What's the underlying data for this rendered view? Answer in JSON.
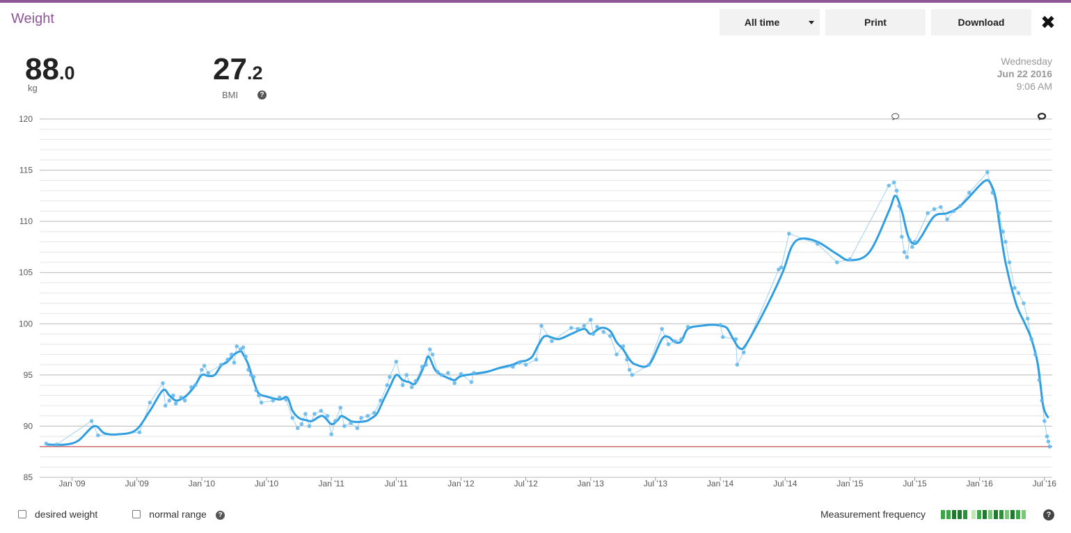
{
  "app": {
    "title": "Weight"
  },
  "toolbar": {
    "range_label": "All time",
    "print_label": "Print",
    "download_label": "Download",
    "close_icon": "close-icon"
  },
  "stats": {
    "weight": {
      "int": "88",
      "dec": ".0",
      "unit": "kg"
    },
    "bmi": {
      "int": "27",
      "dec": ".2",
      "label": "BMI"
    }
  },
  "datetime": {
    "day": "Wednesday",
    "date": "Jun 22 2016",
    "time": "9:06 AM"
  },
  "footer": {
    "desired_weight_label": "desired weight",
    "normal_range_label": "normal range",
    "frequency_label": "Measurement frequency",
    "frequency_colors": [
      "#3aa845",
      "#3aa845",
      "#1e7a2c",
      "#1e7a2c",
      "#2f8f3a",
      "#c3e6b8",
      "#3aa845",
      "#1e7a2c",
      "#7ac77a",
      "#1e7a2c",
      "#2f8f3a",
      "#7ac77a",
      "#1e7a2c",
      "#3aa845",
      "#7ac77a"
    ]
  },
  "colors": {
    "accent": "#8e5597",
    "line": "#2f9ee0",
    "points": "#5fb6ec",
    "reference": "#b22222"
  },
  "chart_data": {
    "type": "line",
    "xlabel": "",
    "ylabel": "",
    "ylim": [
      85,
      120
    ],
    "yticks": [
      85,
      90,
      95,
      100,
      105,
      110,
      115,
      120
    ],
    "xlim": [
      2008.75,
      2016.56
    ],
    "xticks": [
      {
        "v": 2009.0,
        "label": "Jan '09"
      },
      {
        "v": 2009.5,
        "label": "Jul '09"
      },
      {
        "v": 2010.0,
        "label": "Jan '10"
      },
      {
        "v": 2010.5,
        "label": "Jul '10"
      },
      {
        "v": 2011.0,
        "label": "Jan '11"
      },
      {
        "v": 2011.5,
        "label": "Jul '11"
      },
      {
        "v": 2012.0,
        "label": "Jan '12"
      },
      {
        "v": 2012.5,
        "label": "Jul '12"
      },
      {
        "v": 2013.0,
        "label": "Jan '13"
      },
      {
        "v": 2013.5,
        "label": "Jul '13"
      },
      {
        "v": 2014.0,
        "label": "Jan '14"
      },
      {
        "v": 2014.5,
        "label": "Jul '14"
      },
      {
        "v": 2015.0,
        "label": "Jan '15"
      },
      {
        "v": 2015.5,
        "label": "Jul '15"
      },
      {
        "v": 2016.0,
        "label": "Jan '16"
      },
      {
        "v": 2016.5,
        "label": "Jul '16"
      }
    ],
    "grid": true,
    "reference_line": {
      "y": 88.0
    },
    "trend": [
      [
        2008.8,
        88.2
      ],
      [
        2008.95,
        88.2
      ],
      [
        2009.05,
        88.6
      ],
      [
        2009.17,
        90.0
      ],
      [
        2009.25,
        89.3
      ],
      [
        2009.35,
        89.2
      ],
      [
        2009.49,
        89.6
      ],
      [
        2009.6,
        91.5
      ],
      [
        2009.7,
        93.5
      ],
      [
        2009.75,
        93.0
      ],
      [
        2009.8,
        92.5
      ],
      [
        2009.85,
        92.7
      ],
      [
        2009.9,
        93.2
      ],
      [
        2009.95,
        94.0
      ],
      [
        2010.0,
        95.0
      ],
      [
        2010.05,
        94.9
      ],
      [
        2010.1,
        95.0
      ],
      [
        2010.15,
        95.9
      ],
      [
        2010.2,
        96.3
      ],
      [
        2010.25,
        97.0
      ],
      [
        2010.3,
        97.3
      ],
      [
        2010.32,
        97.0
      ],
      [
        2010.36,
        96.0
      ],
      [
        2010.4,
        94.4
      ],
      [
        2010.44,
        93.2
      ],
      [
        2010.5,
        92.9
      ],
      [
        2010.6,
        92.6
      ],
      [
        2010.66,
        92.8
      ],
      [
        2010.7,
        91.5
      ],
      [
        2010.75,
        90.8
      ],
      [
        2010.8,
        90.6
      ],
      [
        2010.85,
        90.5
      ],
      [
        2010.93,
        91.0
      ],
      [
        2011.0,
        90.2
      ],
      [
        2011.05,
        90.6
      ],
      [
        2011.08,
        91.0
      ],
      [
        2011.15,
        90.5
      ],
      [
        2011.2,
        90.4
      ],
      [
        2011.27,
        90.5
      ],
      [
        2011.3,
        90.7
      ],
      [
        2011.35,
        91.2
      ],
      [
        2011.4,
        92.5
      ],
      [
        2011.45,
        93.8
      ],
      [
        2011.5,
        95.0
      ],
      [
        2011.55,
        94.5
      ],
      [
        2011.6,
        94.3
      ],
      [
        2011.65,
        94.2
      ],
      [
        2011.72,
        96.0
      ],
      [
        2011.75,
        96.8
      ],
      [
        2011.8,
        95.5
      ],
      [
        2011.85,
        95.0
      ],
      [
        2011.9,
        94.7
      ],
      [
        2011.95,
        94.5
      ],
      [
        2012.0,
        94.9
      ],
      [
        2012.1,
        95.1
      ],
      [
        2012.2,
        95.3
      ],
      [
        2012.3,
        95.7
      ],
      [
        2012.4,
        96.0
      ],
      [
        2012.45,
        96.3
      ],
      [
        2012.5,
        96.4
      ],
      [
        2012.55,
        96.8
      ],
      [
        2012.6,
        98.0
      ],
      [
        2012.65,
        98.8
      ],
      [
        2012.75,
        98.5
      ],
      [
        2012.85,
        99.0
      ],
      [
        2012.95,
        99.5
      ],
      [
        2013.0,
        99.0
      ],
      [
        2013.08,
        99.6
      ],
      [
        2013.15,
        99.3
      ],
      [
        2013.2,
        98.2
      ],
      [
        2013.25,
        97.5
      ],
      [
        2013.3,
        96.5
      ],
      [
        2013.35,
        96.0
      ],
      [
        2013.45,
        96.0
      ],
      [
        2013.55,
        98.5
      ],
      [
        2013.6,
        98.7
      ],
      [
        2013.65,
        98.2
      ],
      [
        2013.7,
        98.3
      ],
      [
        2013.75,
        99.5
      ],
      [
        2013.85,
        99.8
      ],
      [
        2013.95,
        99.9
      ],
      [
        2014.0,
        99.8
      ],
      [
        2014.05,
        99.6
      ],
      [
        2014.1,
        98.5
      ],
      [
        2014.15,
        97.6
      ],
      [
        2014.2,
        98.0
      ],
      [
        2014.35,
        101.5
      ],
      [
        2014.48,
        105.0
      ],
      [
        2014.55,
        107.5
      ],
      [
        2014.62,
        108.3
      ],
      [
        2014.75,
        108.0
      ],
      [
        2014.9,
        106.8
      ],
      [
        2015.0,
        106.2
      ],
      [
        2015.15,
        107.0
      ],
      [
        2015.3,
        111.0
      ],
      [
        2015.35,
        112.5
      ],
      [
        2015.4,
        111.0
      ],
      [
        2015.45,
        108.5
      ],
      [
        2015.5,
        107.8
      ],
      [
        2015.55,
        108.5
      ],
      [
        2015.65,
        110.5
      ],
      [
        2015.75,
        110.8
      ],
      [
        2015.85,
        111.5
      ],
      [
        2016.0,
        113.5
      ],
      [
        2016.05,
        114.0
      ],
      [
        2016.08,
        113.8
      ],
      [
        2016.12,
        112.5
      ],
      [
        2016.15,
        110.0
      ],
      [
        2016.2,
        106.0
      ],
      [
        2016.28,
        102.0
      ],
      [
        2016.35,
        100.0
      ],
      [
        2016.4,
        98.5
      ],
      [
        2016.45,
        96.0
      ],
      [
        2016.49,
        92.0
      ],
      [
        2016.53,
        90.8
      ]
    ],
    "measurements": [
      [
        2008.8,
        88.3
      ],
      [
        2008.88,
        88.2
      ],
      [
        2009.15,
        90.5
      ],
      [
        2009.2,
        89.1
      ],
      [
        2009.52,
        89.4
      ],
      [
        2009.6,
        92.3
      ],
      [
        2009.7,
        94.2
      ],
      [
        2009.72,
        92.0
      ],
      [
        2009.75,
        92.5
      ],
      [
        2009.78,
        93.0
      ],
      [
        2009.8,
        92.2
      ],
      [
        2009.84,
        92.8
      ],
      [
        2009.87,
        92.5
      ],
      [
        2009.92,
        93.8
      ],
      [
        2009.95,
        94.0
      ],
      [
        2010.0,
        95.5
      ],
      [
        2010.02,
        95.9
      ],
      [
        2010.05,
        95.2
      ],
      [
        2010.15,
        96.0
      ],
      [
        2010.2,
        96.5
      ],
      [
        2010.23,
        97.0
      ],
      [
        2010.25,
        96.2
      ],
      [
        2010.27,
        97.8
      ],
      [
        2010.3,
        97.5
      ],
      [
        2010.32,
        97.7
      ],
      [
        2010.34,
        96.8
      ],
      [
        2010.36,
        95.5
      ],
      [
        2010.38,
        95.0
      ],
      [
        2010.4,
        94.8
      ],
      [
        2010.42,
        93.5
      ],
      [
        2010.44,
        93.0
      ],
      [
        2010.46,
        92.3
      ],
      [
        2010.55,
        92.5
      ],
      [
        2010.6,
        92.8
      ],
      [
        2010.65,
        92.6
      ],
      [
        2010.7,
        90.8
      ],
      [
        2010.74,
        89.8
      ],
      [
        2010.77,
        90.2
      ],
      [
        2010.8,
        91.2
      ],
      [
        2010.83,
        90.0
      ],
      [
        2010.87,
        91.2
      ],
      [
        2010.92,
        91.5
      ],
      [
        2010.97,
        91.0
      ],
      [
        2011.0,
        89.2
      ],
      [
        2011.03,
        90.5
      ],
      [
        2011.07,
        91.8
      ],
      [
        2011.1,
        90.0
      ],
      [
        2011.15,
        90.3
      ],
      [
        2011.2,
        89.8
      ],
      [
        2011.23,
        90.8
      ],
      [
        2011.28,
        91.0
      ],
      [
        2011.33,
        91.3
      ],
      [
        2011.38,
        92.5
      ],
      [
        2011.43,
        94.0
      ],
      [
        2011.45,
        94.8
      ],
      [
        2011.5,
        96.3
      ],
      [
        2011.55,
        94.0
      ],
      [
        2011.58,
        95.0
      ],
      [
        2011.62,
        93.8
      ],
      [
        2011.65,
        94.4
      ],
      [
        2011.7,
        95.8
      ],
      [
        2011.73,
        96.0
      ],
      [
        2011.76,
        97.5
      ],
      [
        2011.78,
        97.0
      ],
      [
        2011.82,
        95.3
      ],
      [
        2011.85,
        95.0
      ],
      [
        2011.9,
        95.2
      ],
      [
        2011.95,
        94.2
      ],
      [
        2012.0,
        95.1
      ],
      [
        2012.08,
        94.3
      ],
      [
        2012.1,
        95.2
      ],
      [
        2012.4,
        95.8
      ],
      [
        2012.45,
        96.2
      ],
      [
        2012.5,
        96.0
      ],
      [
        2012.58,
        96.5
      ],
      [
        2012.62,
        99.8
      ],
      [
        2012.7,
        98.3
      ],
      [
        2012.85,
        99.6
      ],
      [
        2012.9,
        99.5
      ],
      [
        2012.95,
        99.8
      ],
      [
        2013.0,
        100.4
      ],
      [
        2013.02,
        99.0
      ],
      [
        2013.05,
        99.7
      ],
      [
        2013.1,
        99.2
      ],
      [
        2013.15,
        98.8
      ],
      [
        2013.2,
        97.0
      ],
      [
        2013.25,
        97.8
      ],
      [
        2013.28,
        96.5
      ],
      [
        2013.3,
        95.5
      ],
      [
        2013.32,
        95.0
      ],
      [
        2013.45,
        96.0
      ],
      [
        2013.55,
        99.5
      ],
      [
        2013.6,
        98.0
      ],
      [
        2013.65,
        98.3
      ],
      [
        2013.7,
        98.5
      ],
      [
        2013.75,
        99.7
      ],
      [
        2014.0,
        99.9
      ],
      [
        2014.02,
        98.7
      ],
      [
        2014.12,
        98.5
      ],
      [
        2014.13,
        96.0
      ],
      [
        2014.18,
        97.2
      ],
      [
        2014.45,
        105.3
      ],
      [
        2014.47,
        105.5
      ],
      [
        2014.53,
        108.8
      ],
      [
        2014.75,
        107.8
      ],
      [
        2014.9,
        106.0
      ],
      [
        2015.0,
        106.3
      ],
      [
        2015.3,
        113.5
      ],
      [
        2015.34,
        113.8
      ],
      [
        2015.36,
        113.0
      ],
      [
        2015.38,
        111.5
      ],
      [
        2015.4,
        108.5
      ],
      [
        2015.42,
        107.0
      ],
      [
        2015.44,
        106.5
      ],
      [
        2015.46,
        108.2
      ],
      [
        2015.48,
        107.5
      ],
      [
        2015.5,
        108.0
      ],
      [
        2015.6,
        110.8
      ],
      [
        2015.65,
        111.2
      ],
      [
        2015.7,
        111.4
      ],
      [
        2015.75,
        110.2
      ],
      [
        2015.8,
        111.0
      ],
      [
        2015.85,
        111.5
      ],
      [
        2015.92,
        112.8
      ],
      [
        2016.06,
        114.8
      ],
      [
        2016.1,
        112.8
      ],
      [
        2016.15,
        110.8
      ],
      [
        2016.18,
        109.0
      ],
      [
        2016.2,
        108.0
      ],
      [
        2016.23,
        106.0
      ],
      [
        2016.27,
        103.5
      ],
      [
        2016.3,
        103.0
      ],
      [
        2016.34,
        102.0
      ],
      [
        2016.37,
        100.5
      ],
      [
        2016.4,
        98.5
      ],
      [
        2016.43,
        97.0
      ],
      [
        2016.46,
        94.5
      ],
      [
        2016.48,
        92.5
      ],
      [
        2016.5,
        90.5
      ],
      [
        2016.52,
        89.0
      ],
      [
        2016.53,
        88.5
      ],
      [
        2016.54,
        88.0
      ]
    ],
    "note_markers": [
      {
        "x": 2015.35,
        "icon": "comment-icon"
      },
      {
        "x": 2016.48,
        "icon": "comment-filled-icon"
      }
    ]
  }
}
